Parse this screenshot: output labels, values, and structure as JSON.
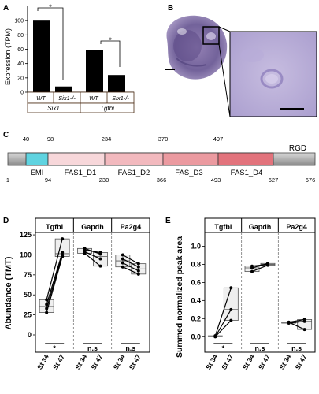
{
  "panels": {
    "A": {
      "letter": "A",
      "ylabel": "Expression (TPM)",
      "yticks": [
        "0",
        "20",
        "40",
        "60",
        "80",
        "100"
      ],
      "ylim": [
        0,
        120
      ],
      "groups": [
        {
          "name": "Six1",
          "bars": [
            {
              "label": "WT",
              "value": 100
            },
            {
              "label": "Six1-/-",
              "value": 8
            }
          ]
        },
        {
          "name": "Tgfbi",
          "bars": [
            {
              "label": "WT",
              "value": 59
            },
            {
              "label": "Six1-/-",
              "value": 24
            }
          ]
        }
      ],
      "significance": [
        "*",
        "*"
      ]
    },
    "B": {
      "letter": "B"
    },
    "C": {
      "letter": "C",
      "motif": "RGD",
      "domains": [
        {
          "label": "EMI",
          "color": "#5fd3e0"
        },
        {
          "label": "FAS1_D1",
          "color": "#f7d7da"
        },
        {
          "label": "FAS1_D2",
          "color": "#f2b9be"
        },
        {
          "label": "FAS_D3",
          "color": "#eb9aa0"
        },
        {
          "label": "FAS1_D4",
          "color": "#e2737c"
        }
      ],
      "positions_top": [
        "40",
        "98",
        "234",
        "370",
        "497"
      ],
      "positions_bottom": [
        "1",
        "94",
        "230",
        "366",
        "493",
        "627",
        "676"
      ]
    },
    "D": {
      "letter": "D",
      "ylabel": "Abundance (TMT)",
      "yticks": [
        "0",
        "25",
        "50",
        "75",
        "100",
        "125"
      ],
      "proteins": [
        "Tgfbi",
        "Gapdh",
        "Pa2g4"
      ],
      "xticks": [
        "St 34",
        "St 47"
      ],
      "significance": [
        "*",
        "n.s",
        "n.s"
      ]
    },
    "E": {
      "letter": "E",
      "ylabel": "Summed normalized peak area",
      "yticks": [
        "0.0",
        "0.2",
        "0.4",
        "0.6",
        "0.8",
        "1.0"
      ],
      "proteins": [
        "Tgfbi",
        "Gapdh",
        "Pa2g4"
      ],
      "xticks": [
        "St 34",
        "St 47"
      ],
      "significance": [
        "*",
        "n.s",
        "n.s"
      ]
    }
  },
  "chart_data": [
    {
      "type": "bar",
      "title": "",
      "ylabel": "Expression (TPM)",
      "ylim": [
        0,
        120
      ],
      "categories": [
        "Six1 WT",
        "Six1 Six1-/-",
        "Tgfbi WT",
        "Tgfbi Six1-/-"
      ],
      "values": [
        100,
        8,
        59,
        24
      ]
    },
    {
      "type": "scatter",
      "ylabel": "Abundance (TMT)",
      "ylim": [
        0,
        130
      ],
      "groups": [
        {
          "name": "Tgfbi",
          "pairs": [
            [
              44,
              120
            ],
            [
              38,
              103
            ],
            [
              33,
              100
            ],
            [
              28,
              98
            ]
          ]
        },
        {
          "name": "Gapdh",
          "pairs": [
            [
              108,
              101
            ],
            [
              106,
              103
            ],
            [
              104,
              95
            ],
            [
              102,
              86
            ]
          ]
        },
        {
          "name": "Pa2g4",
          "pairs": [
            [
              100,
              89
            ],
            [
              95,
              85
            ],
            [
              90,
              80
            ],
            [
              85,
              76
            ]
          ]
        }
      ]
    },
    {
      "type": "scatter",
      "ylabel": "Summed normalized peak area",
      "ylim": [
        -0.05,
        1.1
      ],
      "groups": [
        {
          "name": "Tgfbi",
          "pairs": [
            [
              0.01,
              0.54
            ],
            [
              0.0,
              0.3
            ],
            [
              0.0,
              0.18
            ]
          ]
        },
        {
          "name": "Gapdh",
          "pairs": [
            [
              0.78,
              0.8
            ],
            [
              0.76,
              0.81
            ],
            [
              0.72,
              0.79
            ]
          ]
        },
        {
          "name": "Pa2g4",
          "pairs": [
            [
              0.16,
              0.19
            ],
            [
              0.15,
              0.17
            ],
            [
              0.16,
              0.08
            ]
          ]
        }
      ]
    }
  ]
}
